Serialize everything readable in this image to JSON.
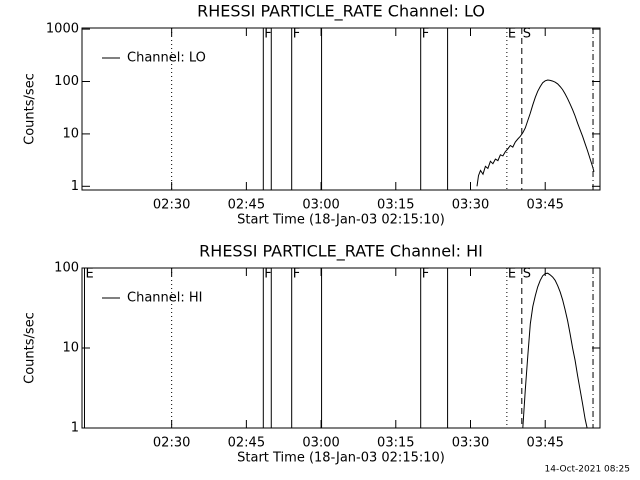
{
  "chart_data": [
    {
      "type": "line",
      "title": "RHESSI PARTICLE_RATE Channel: LO",
      "xlabel": "Start Time (18-Jan-03 02:15:10)",
      "ylabel": "Counts/sec",
      "log_y": true,
      "xlim": [
        132,
        236
      ],
      "ylim": [
        0.85,
        1050
      ],
      "xticks": [
        {
          "value": 150,
          "label": "02:30"
        },
        {
          "value": 165,
          "label": "02:45"
        },
        {
          "value": 180,
          "label": "03:00"
        },
        {
          "value": 195,
          "label": "03:15"
        },
        {
          "value": 210,
          "label": "03:30"
        },
        {
          "value": 225,
          "label": "03:45"
        }
      ],
      "yticks": [
        1,
        10,
        100,
        1000
      ],
      "x": [
        211.3,
        211.6,
        212,
        212.5,
        213,
        213.5,
        214,
        214.5,
        215,
        215.5,
        216,
        216.5,
        217,
        217.5,
        218,
        218.5,
        219,
        219.5,
        220,
        220.5,
        221,
        221.5,
        222,
        222.5,
        223,
        223.5,
        224,
        224.5,
        225,
        225.5,
        226,
        226.5,
        227,
        227.5,
        228,
        228.5,
        229,
        229.5,
        230,
        230.5,
        231,
        231.5,
        232,
        232.5,
        233,
        233.5,
        234,
        234.5,
        234.8
      ],
      "series": [
        {
          "name": "Channel: LO",
          "color": "#000000",
          "values": [
            1,
            1.6,
            2,
            1.7,
            2.4,
            2.2,
            3,
            2.7,
            3.3,
            3.1,
            4,
            3.8,
            4.6,
            5.2,
            6,
            5.6,
            7,
            8,
            9,
            10.5,
            13,
            18,
            25,
            36,
            50,
            65,
            80,
            95,
            103,
            107,
            105,
            102,
            97,
            90,
            80,
            70,
            58,
            47,
            37,
            29,
            22,
            16,
            12,
            9,
            6.5,
            4.8,
            3.4,
            2.4,
            1.9
          ]
        }
      ],
      "legend": "upper left",
      "markers": [
        {
          "x": 150,
          "style": "dotted"
        },
        {
          "x": 168.4,
          "style": "solid",
          "label": "F"
        },
        {
          "x": 170,
          "style": "solid"
        },
        {
          "x": 174.1,
          "style": "solid",
          "label": "F"
        },
        {
          "x": 180.1,
          "style": "solid"
        },
        {
          "x": 200,
          "style": "solid",
          "label": "F"
        },
        {
          "x": 205.4,
          "style": "solid"
        },
        {
          "x": 217.3,
          "style": "dotted",
          "label": "E"
        },
        {
          "x": 220.3,
          "style": "dashed",
          "label": "S"
        },
        {
          "x": 234.6,
          "style": "dashdot"
        }
      ]
    },
    {
      "type": "line",
      "title": "RHESSI PARTICLE_RATE Channel: HI",
      "xlabel": "Start Time (18-Jan-03 02:15:10)",
      "ylabel": "Counts/sec",
      "log_y": true,
      "xlim": [
        132,
        236
      ],
      "ylim": [
        1,
        100
      ],
      "xticks": [
        {
          "value": 150,
          "label": "02:30"
        },
        {
          "value": 165,
          "label": "02:45"
        },
        {
          "value": 180,
          "label": "03:00"
        },
        {
          "value": 195,
          "label": "03:15"
        },
        {
          "value": 210,
          "label": "03:30"
        },
        {
          "value": 225,
          "label": "03:45"
        }
      ],
      "yticks": [
        1,
        10,
        100
      ],
      "x": [
        220.5,
        221,
        221.5,
        222,
        222.5,
        223,
        223.5,
        224,
        224.5,
        225,
        225.5,
        226,
        226.5,
        227,
        227.5,
        228,
        228.5,
        229,
        229.5,
        230,
        230.5,
        231,
        231.5,
        232,
        232.5,
        233,
        233.4
      ],
      "series": [
        {
          "name": "Channel: HI",
          "color": "#000000",
          "values": [
            1,
            3,
            8,
            20,
            33,
            45,
            58,
            70,
            80,
            85,
            86,
            82,
            77,
            70,
            60,
            50,
            40,
            30,
            22,
            15,
            10,
            7,
            4.5,
            3,
            2,
            1.3,
            1
          ]
        }
      ],
      "legend": "upper left",
      "markers": [
        {
          "x": 132.5,
          "style": "solid",
          "label": "E"
        },
        {
          "x": 150,
          "style": "dotted"
        },
        {
          "x": 168.4,
          "style": "solid",
          "label": "F"
        },
        {
          "x": 170,
          "style": "solid"
        },
        {
          "x": 174.1,
          "style": "solid",
          "label": "F"
        },
        {
          "x": 180.1,
          "style": "solid"
        },
        {
          "x": 200,
          "style": "solid",
          "label": "F"
        },
        {
          "x": 205.4,
          "style": "solid"
        },
        {
          "x": 217.3,
          "style": "dotted",
          "label": "E"
        },
        {
          "x": 220.3,
          "style": "dashed",
          "label": "S"
        },
        {
          "x": 234.6,
          "style": "dashdot"
        }
      ]
    }
  ],
  "footer": "14-Oct-2021 08:25"
}
